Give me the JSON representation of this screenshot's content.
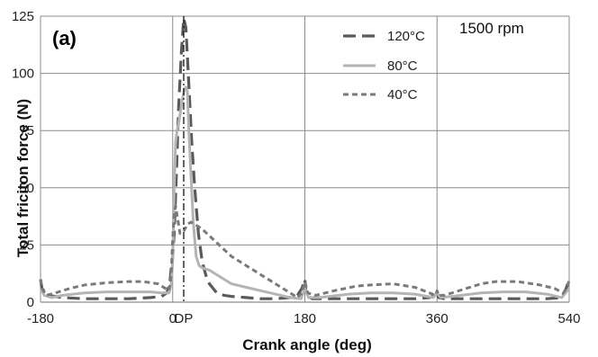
{
  "chart_data": {
    "type": "line",
    "panel_label": "(a)",
    "annotation": "1500 rpm",
    "xlabel": "Crank angle (deg)",
    "ylabel": "Total friciton force (N)",
    "xlim": [
      -180,
      540
    ],
    "ylim": [
      0,
      125
    ],
    "xticks": [
      -180,
      0,
      180,
      360,
      540
    ],
    "yticks": [
      0,
      25,
      50,
      75,
      100,
      125
    ],
    "grid": "both",
    "legend_position": "top-right",
    "marker": {
      "label": "DP",
      "x": 15
    },
    "series": [
      {
        "name": "120°C",
        "style": "long-dash",
        "color": "#5a5a5a",
        "x": [
          -180,
          -178,
          -170,
          -150,
          -120,
          -90,
          -60,
          -30,
          -15,
          -8,
          -4,
          -2,
          0,
          2,
          5,
          8,
          12,
          15,
          18,
          22,
          26,
          30,
          35,
          40,
          45,
          50,
          60,
          70,
          80,
          100,
          120,
          140,
          160,
          170,
          176,
          180,
          182,
          190,
          220,
          260,
          300,
          330,
          350,
          358,
          360,
          362,
          370,
          400,
          440,
          480,
          510,
          530,
          536,
          540
        ],
        "y": [
          10,
          6,
          3,
          2,
          1.5,
          1.5,
          1.5,
          2,
          2.5,
          4,
          8,
          15,
          20,
          30,
          55,
          85,
          110,
          124,
          120,
          95,
          70,
          50,
          30,
          18,
          12,
          8,
          4,
          3,
          2.5,
          2,
          1.5,
          1.5,
          2,
          3,
          6,
          10,
          3,
          1.5,
          1.5,
          1.5,
          1.5,
          1.5,
          2,
          3,
          5,
          2,
          1.5,
          1.5,
          1.5,
          1.5,
          1.5,
          2,
          6,
          10
        ]
      },
      {
        "name": "80°C",
        "style": "solid",
        "color": "#b4b4b4",
        "x": [
          -180,
          -175,
          -165,
          -150,
          -120,
          -90,
          -60,
          -30,
          -15,
          -5,
          -2,
          0,
          2,
          4,
          6,
          8,
          10,
          12,
          14,
          16,
          18,
          20,
          22,
          25,
          28,
          32,
          36,
          40,
          50,
          60,
          70,
          80,
          100,
          120,
          140,
          160,
          175,
          180,
          185,
          200,
          240,
          270,
          300,
          330,
          355,
          360,
          365,
          380,
          420,
          450,
          480,
          510,
          530,
          540
        ],
        "y": [
          6,
          3,
          2,
          3,
          4,
          4.5,
          4.5,
          4.5,
          4,
          4,
          8,
          18,
          50,
          70,
          75,
          78,
          82,
          86,
          90,
          93,
          94,
          92,
          75,
          55,
          35,
          20,
          16,
          15,
          14,
          12,
          10,
          8,
          6.5,
          5,
          3.5,
          2,
          1.5,
          6,
          2,
          2,
          3.5,
          4,
          4,
          3.5,
          2,
          4,
          2,
          2.5,
          4,
          4.5,
          4.5,
          3.5,
          2,
          6
        ]
      },
      {
        "name": "40°C",
        "style": "short-dash",
        "color": "#7a7a7a",
        "x": [
          -180,
          -178,
          -172,
          -160,
          -140,
          -120,
          -90,
          -60,
          -40,
          -20,
          -10,
          -5,
          -2,
          0,
          2,
          4,
          6,
          8,
          10,
          12,
          15,
          20,
          25,
          30,
          35,
          40,
          50,
          60,
          70,
          80,
          100,
          120,
          140,
          160,
          170,
          176,
          180,
          184,
          195,
          220,
          250,
          270,
          300,
          330,
          350,
          358,
          360,
          362,
          370,
          400,
          420,
          440,
          470,
          500,
          520,
          532,
          538,
          540
        ],
        "y": [
          10,
          6,
          3,
          4,
          6,
          7.5,
          8.5,
          9,
          9,
          8,
          6,
          5,
          12,
          28,
          38,
          42,
          38,
          34,
          30,
          30,
          31,
          34,
          35,
          34,
          33,
          32,
          29,
          26,
          23,
          20,
          16,
          12,
          8,
          4,
          2,
          4,
          9,
          4,
          3,
          5,
          7,
          7.5,
          8,
          6.5,
          4,
          3,
          5,
          3,
          3,
          6,
          8,
          9,
          9,
          7.5,
          6,
          4,
          7,
          10
        ]
      }
    ]
  }
}
